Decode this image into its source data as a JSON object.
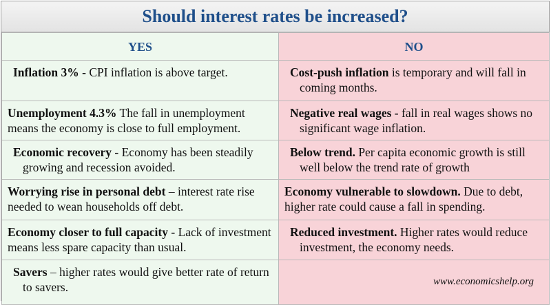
{
  "title": "Should interest rates be increased?",
  "columns": {
    "yes": "YES",
    "no": "NO"
  },
  "rows": [
    {
      "yes_bold": "Inflation 3% -",
      "yes_text": " CPI inflation is above target.",
      "no_bold": "Cost-push inflation",
      "no_text": " is temporary and will fall in coming months."
    },
    {
      "yes_bold": "Unemployment 4.3%",
      "yes_text": " The fall in unemployment means the economy is close to full employment.",
      "no_bold": "Negative real wages -",
      "no_text": " fall in real wages shows no significant wage inflation."
    },
    {
      "yes_bold": "Economic recovery -",
      "yes_text": " Economy has been steadily growing and recession avoided.",
      "no_bold": "Below trend.",
      "no_text": " Per capita economic growth is still well below the trend rate of growth"
    },
    {
      "yes_bold": "Worrying rise in personal debt",
      "yes_text": " – interest rate rise needed to wean households off debt.",
      "no_bold": "Economy vulnerable to slowdown.",
      "no_text": " Due to debt, higher rate could cause a fall in spending."
    },
    {
      "yes_bold": "Economy closer to full capacity -",
      "yes_text": " Lack of investment means less spare capacity than usual.",
      "no_bold": "Reduced investment.",
      "no_text": " Higher rates would reduce investment, the economy needs."
    },
    {
      "yes_bold": "Savers",
      "yes_text": " – higher rates would give better rate of return to savers.",
      "no_bold": "",
      "no_text": ""
    }
  ],
  "credit": "www.economicshelp.org",
  "colors": {
    "title_text": "#1f4f8a",
    "yes_bg": "#eef8ee",
    "no_bg": "#f8d3d8"
  }
}
